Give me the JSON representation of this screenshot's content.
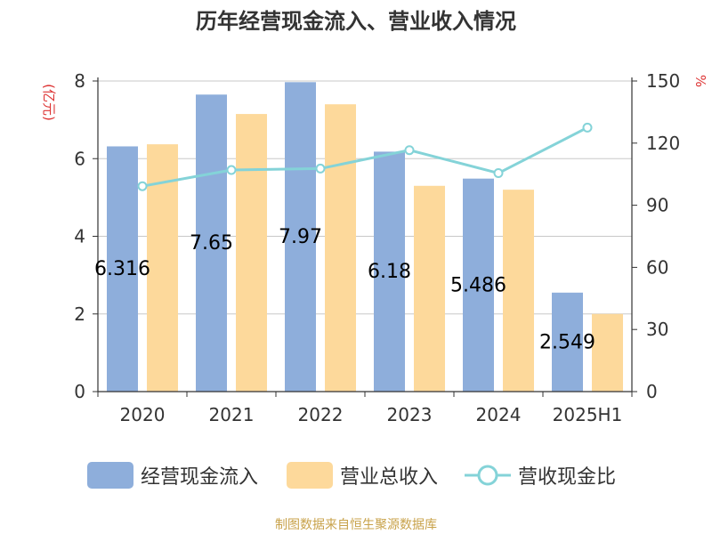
{
  "chart_data": {
    "type": "bar",
    "title": "历年经营现金流入、营业收入情况",
    "categories": [
      "2020",
      "2021",
      "2022",
      "2023",
      "2024",
      "2025H1"
    ],
    "series": [
      {
        "name": "经营现金流入",
        "type": "bar",
        "axis": "left",
        "color": "#8eaedb",
        "values": [
          6.316,
          7.65,
          7.97,
          6.18,
          5.486,
          2.549
        ],
        "labels": [
          "6.316",
          "7.65",
          "7.97",
          "6.18",
          "5.486",
          "2.549"
        ]
      },
      {
        "name": "营业总收入",
        "type": "bar",
        "axis": "left",
        "color": "#fdd99b",
        "values": [
          6.37,
          7.15,
          7.4,
          5.3,
          5.2,
          2.0
        ]
      },
      {
        "name": "营收现金比",
        "type": "line",
        "axis": "right",
        "color": "#84d3d8",
        "values": [
          99.2,
          107.0,
          107.7,
          116.6,
          105.5,
          127.5
        ]
      }
    ],
    "y_left": {
      "label": "(亿元)",
      "ticks": [
        "0",
        "2",
        "4",
        "6",
        "8"
      ],
      "lim": [
        0,
        8
      ]
    },
    "y_right": {
      "label": "%",
      "ticks": [
        "0",
        "30",
        "60",
        "90",
        "120",
        "150"
      ],
      "lim": [
        0,
        150
      ]
    },
    "grid": true,
    "legend_position": "bottom",
    "source_note": "制图数据来自恒生聚源数据库"
  }
}
